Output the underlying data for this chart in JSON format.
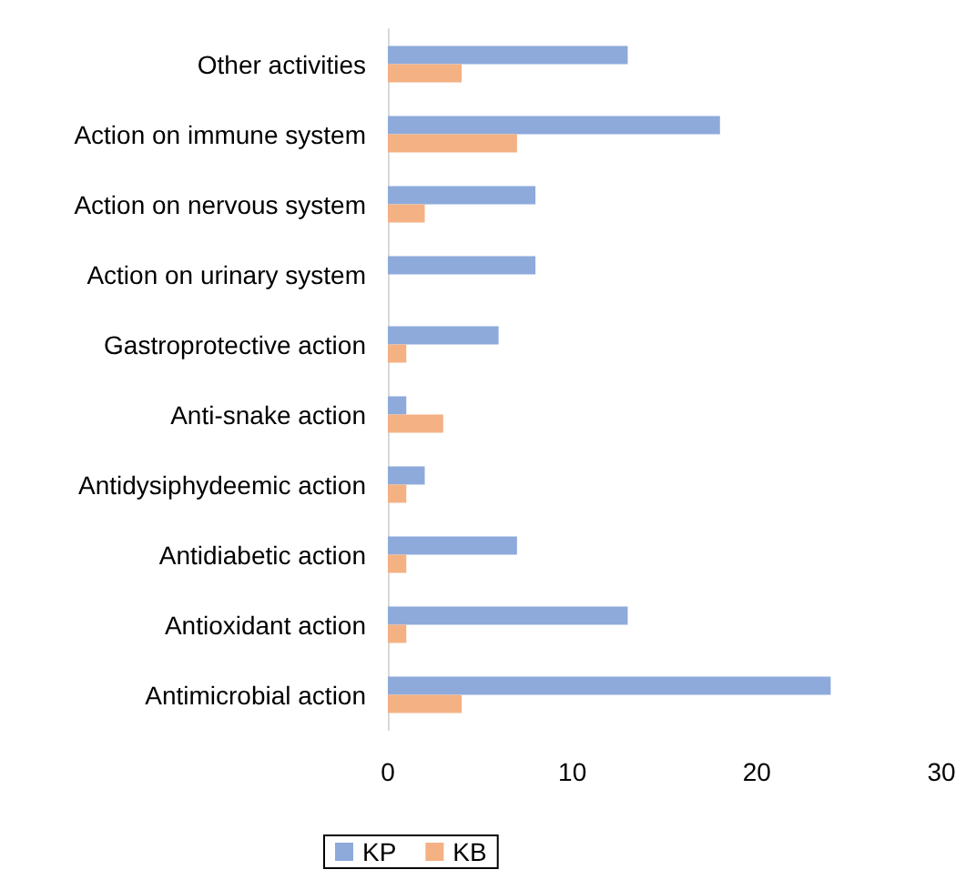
{
  "chart_data": {
    "type": "bar",
    "orientation": "horizontal",
    "categories": [
      "Other activities",
      "Action on immune system",
      "Action on nervous system",
      "Action on urinary system",
      "Gastroprotective action",
      "Anti-snake action",
      "Antidysiphydeemic action",
      "Antidiabetic action",
      "Antioxidant action",
      "Antimicrobial action"
    ],
    "series": [
      {
        "name": "KP",
        "color": "#8eaadb",
        "values": [
          13,
          18,
          8,
          8,
          6,
          1,
          2,
          7,
          13,
          24
        ]
      },
      {
        "name": "KB",
        "color": "#f4b183",
        "values": [
          4,
          7,
          2,
          0,
          1,
          3,
          1,
          1,
          1,
          4
        ]
      }
    ],
    "xlim": [
      0,
      30
    ],
    "xticks": [
      0,
      10,
      20,
      30
    ],
    "grid": false,
    "legend": "bottom"
  }
}
